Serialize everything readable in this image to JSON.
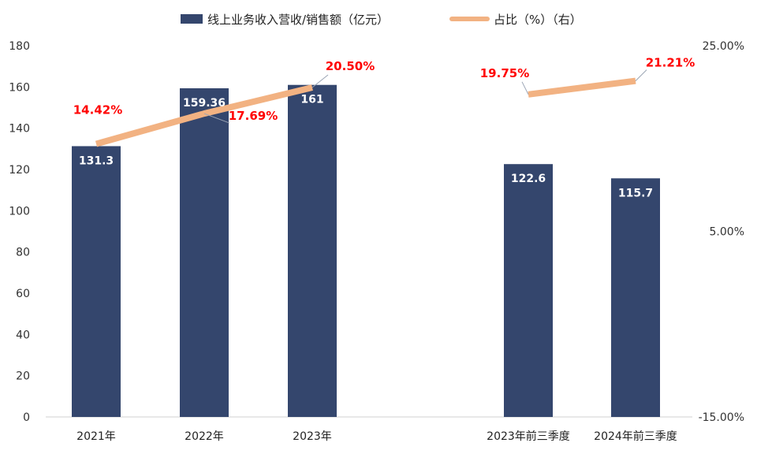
{
  "colors": {
    "bar": "#34466D",
    "line": "#F2B282",
    "ratio_label": "#FF0000",
    "leader": "#9AA4B4",
    "axis": "#D0D0D0"
  },
  "chart_data": {
    "type": "bar",
    "categories": [
      "2021年",
      "2022年",
      "2023年",
      "2023年前三季度",
      "2024年前三季度"
    ],
    "series": [
      {
        "name": "线上业务收入营收/销售额（亿元）",
        "type": "bar",
        "axis": "left",
        "values": [
          131.3,
          159.36,
          161,
          122.6,
          115.7
        ],
        "labels": [
          "131.3",
          "159.36",
          "161",
          "122.6",
          "115.7"
        ]
      },
      {
        "name": "占比（%）（右）",
        "type": "line",
        "axis": "right",
        "segments": [
          [
            0,
            1,
            2
          ],
          [
            3,
            4
          ]
        ],
        "values": [
          14.42,
          17.69,
          20.5,
          19.75,
          21.21
        ],
        "labels": [
          "14.42%",
          "17.69%",
          "20.50%",
          "19.75%",
          "21.21%"
        ]
      }
    ],
    "left_axis": {
      "ylim": [
        0,
        180
      ],
      "ticks": [
        "0",
        "20",
        "40",
        "60",
        "80",
        "100",
        "120",
        "140",
        "160",
        "180"
      ]
    },
    "right_axis": {
      "ylim": [
        -15,
        25
      ],
      "ticks": [
        "-15.00%",
        "5.00%",
        "25.00%"
      ]
    },
    "legend_position": "top-center",
    "grid": false
  }
}
